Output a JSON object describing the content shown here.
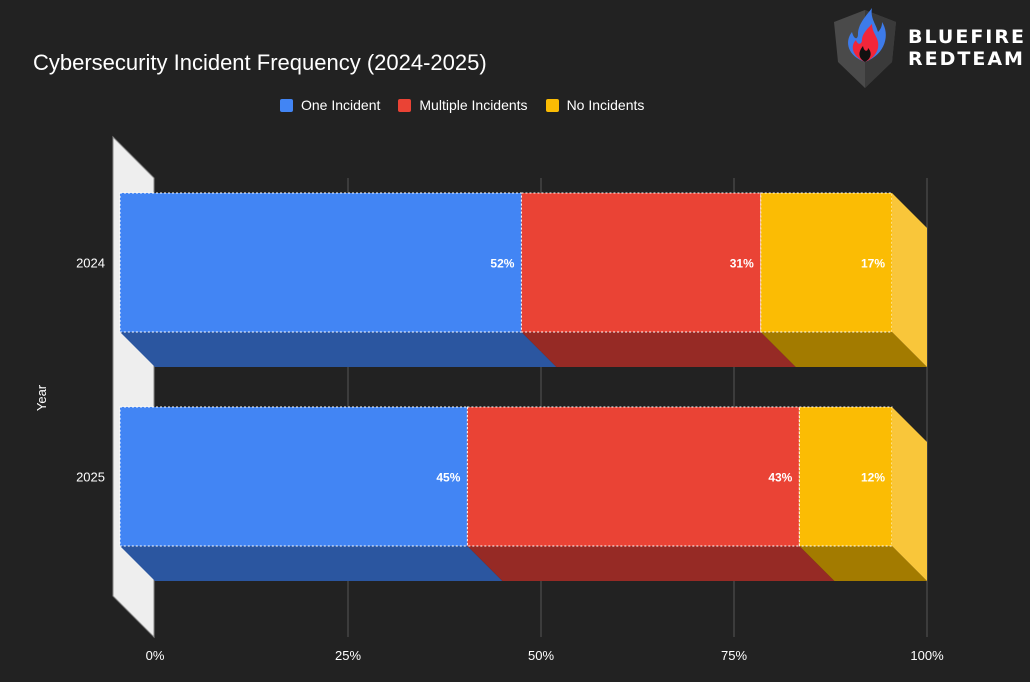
{
  "chart_data": {
    "type": "bar",
    "orientation": "horizontal",
    "stacked": "percent",
    "style": "3d",
    "title": "Cybersecurity Incident Frequency (2024-2025)",
    "xlabel": "",
    "ylabel": "Year",
    "xlim": [
      0,
      100
    ],
    "x_ticks": [
      "0%",
      "25%",
      "50%",
      "75%",
      "100%"
    ],
    "categories": [
      "2024",
      "2025"
    ],
    "series": [
      {
        "name": "One Incident",
        "values": [
          52,
          45
        ],
        "labels": [
          "52%",
          "45%"
        ],
        "color": "#4285F4",
        "shade": "#2B56A0"
      },
      {
        "name": "Multiple Incidents",
        "values": [
          31,
          43
        ],
        "labels": [
          "31%",
          "43%"
        ],
        "color": "#EA4335",
        "shade": "#962A25"
      },
      {
        "name": "No Incidents",
        "values": [
          17,
          12
        ],
        "labels": [
          "17%",
          "12%"
        ],
        "color": "#FBBC04",
        "shade": "#A37B00"
      }
    ],
    "grid": true,
    "legend_position": "top"
  },
  "logo": {
    "line1": "BLUEFIRE",
    "line2": "REDTEAM"
  },
  "colors": {
    "background": "#222222",
    "wall": "#EEEEEE",
    "grid": "#555555"
  }
}
